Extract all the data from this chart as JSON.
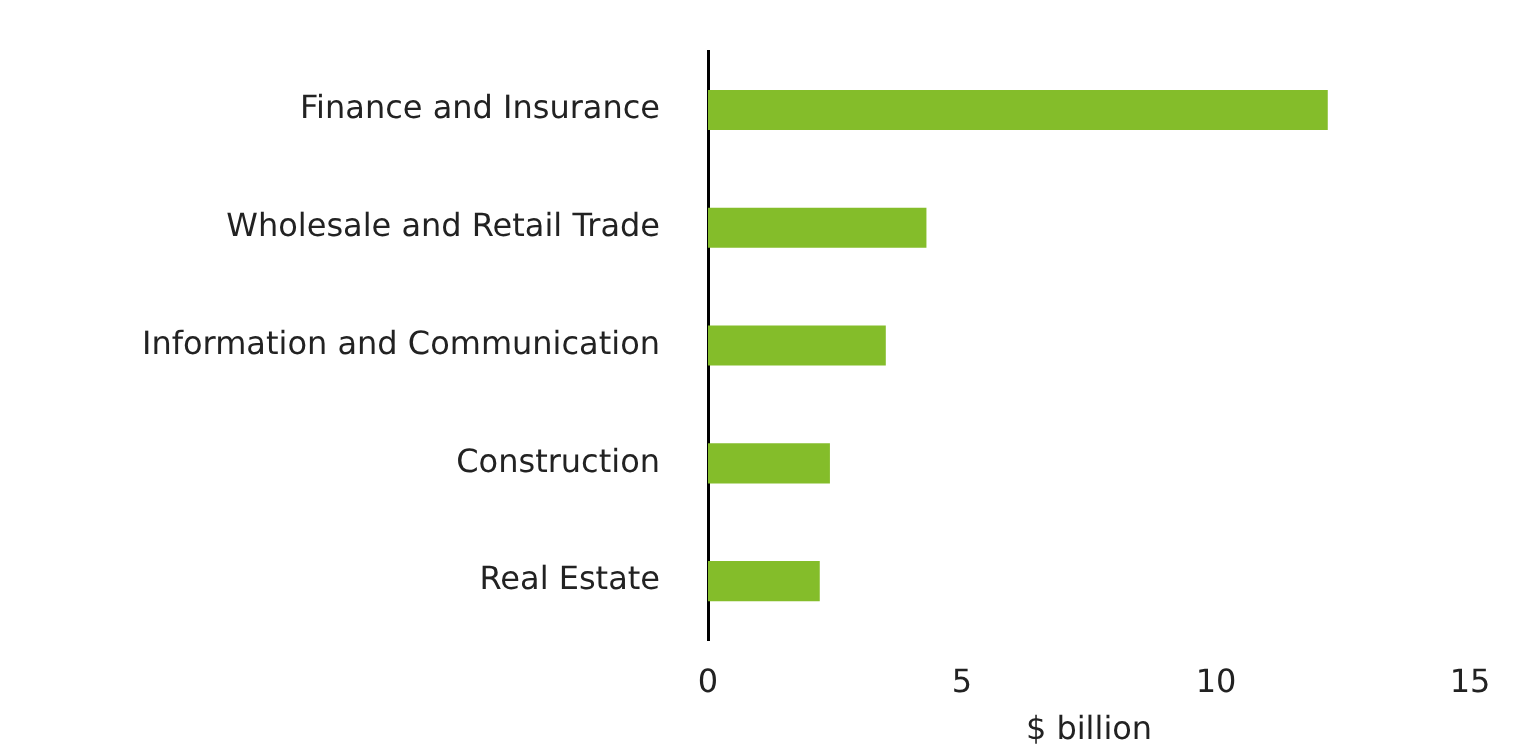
{
  "chart_data": {
    "type": "bar",
    "orientation": "horizontal",
    "categories": [
      "Finance and Insurance",
      "Wholesale and Retail Trade",
      "Information and Communication",
      "Construction",
      "Real Estate"
    ],
    "values": [
      12.2,
      4.3,
      3.5,
      2.4,
      2.2
    ],
    "color": "#84bd2a",
    "xlabel": "$ billion",
    "xlim": [
      0,
      15
    ],
    "xticks": [
      0,
      5,
      10,
      15
    ],
    "grid": false,
    "legend": false
  }
}
